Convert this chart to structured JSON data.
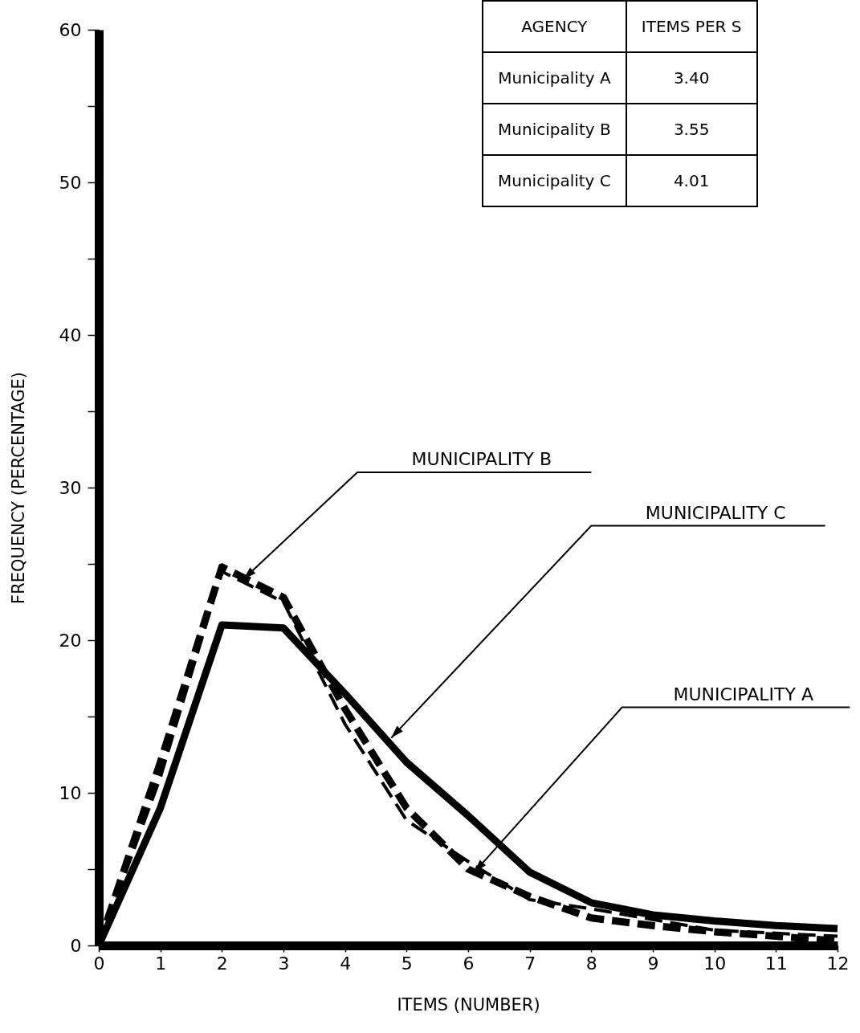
{
  "chart_data": {
    "type": "line",
    "xlabel": "ITEMS  (NUMBER)",
    "ylabel": "FREQUENCY    (PERCENTAGE)",
    "x": [
      0,
      1,
      2,
      3,
      4,
      5,
      6,
      7,
      8,
      9,
      10,
      11,
      12
    ],
    "series": [
      {
        "name": "MUNICIPALITY A",
        "color": "#000000",
        "line_style": "dashed",
        "values": [
          0,
          11,
          24.5,
          22.5,
          14.5,
          8.2,
          5.5,
          3.0,
          2.4,
          1.7,
          1.0,
          0.8,
          0.6
        ]
      },
      {
        "name": "MUNICIPALITY B",
        "color": "#000000",
        "line_style": "dashed",
        "values": [
          0,
          12,
          24.8,
          22.8,
          15.5,
          9,
          5,
          3.2,
          1.8,
          1.3,
          0.9,
          0.6,
          0.3
        ]
      },
      {
        "name": "MUNICIPALITY C",
        "color": "#000000",
        "line_style": "solid",
        "values": [
          0,
          9,
          21,
          20.8,
          16.5,
          12,
          8.5,
          4.8,
          2.8,
          2.0,
          1.6,
          1.3,
          1.1
        ]
      }
    ],
    "xlim": [
      0,
      12
    ],
    "xticks": [
      0,
      1,
      2,
      3,
      4,
      5,
      6,
      7,
      8,
      9,
      10,
      11,
      12
    ],
    "ylim": [
      0,
      60
    ],
    "yticks": [
      0,
      {
        "value": 5,
        "label": null
      },
      10,
      {
        "value": 15,
        "label": null
      },
      20,
      {
        "value": 25,
        "label": null
      },
      30,
      {
        "value": 35,
        "label": null
      },
      40,
      {
        "value": 45,
        "label": null
      },
      50,
      {
        "value": 55,
        "label": null
      },
      60
    ],
    "grid": false,
    "legend": false,
    "marker": "none",
    "annotations": [
      "AGENCY",
      "ITEMS PER S",
      "Municipality A",
      "3.40",
      "Municipality B",
      "3.55",
      "Municipality C",
      "4.01"
    ]
  }
}
